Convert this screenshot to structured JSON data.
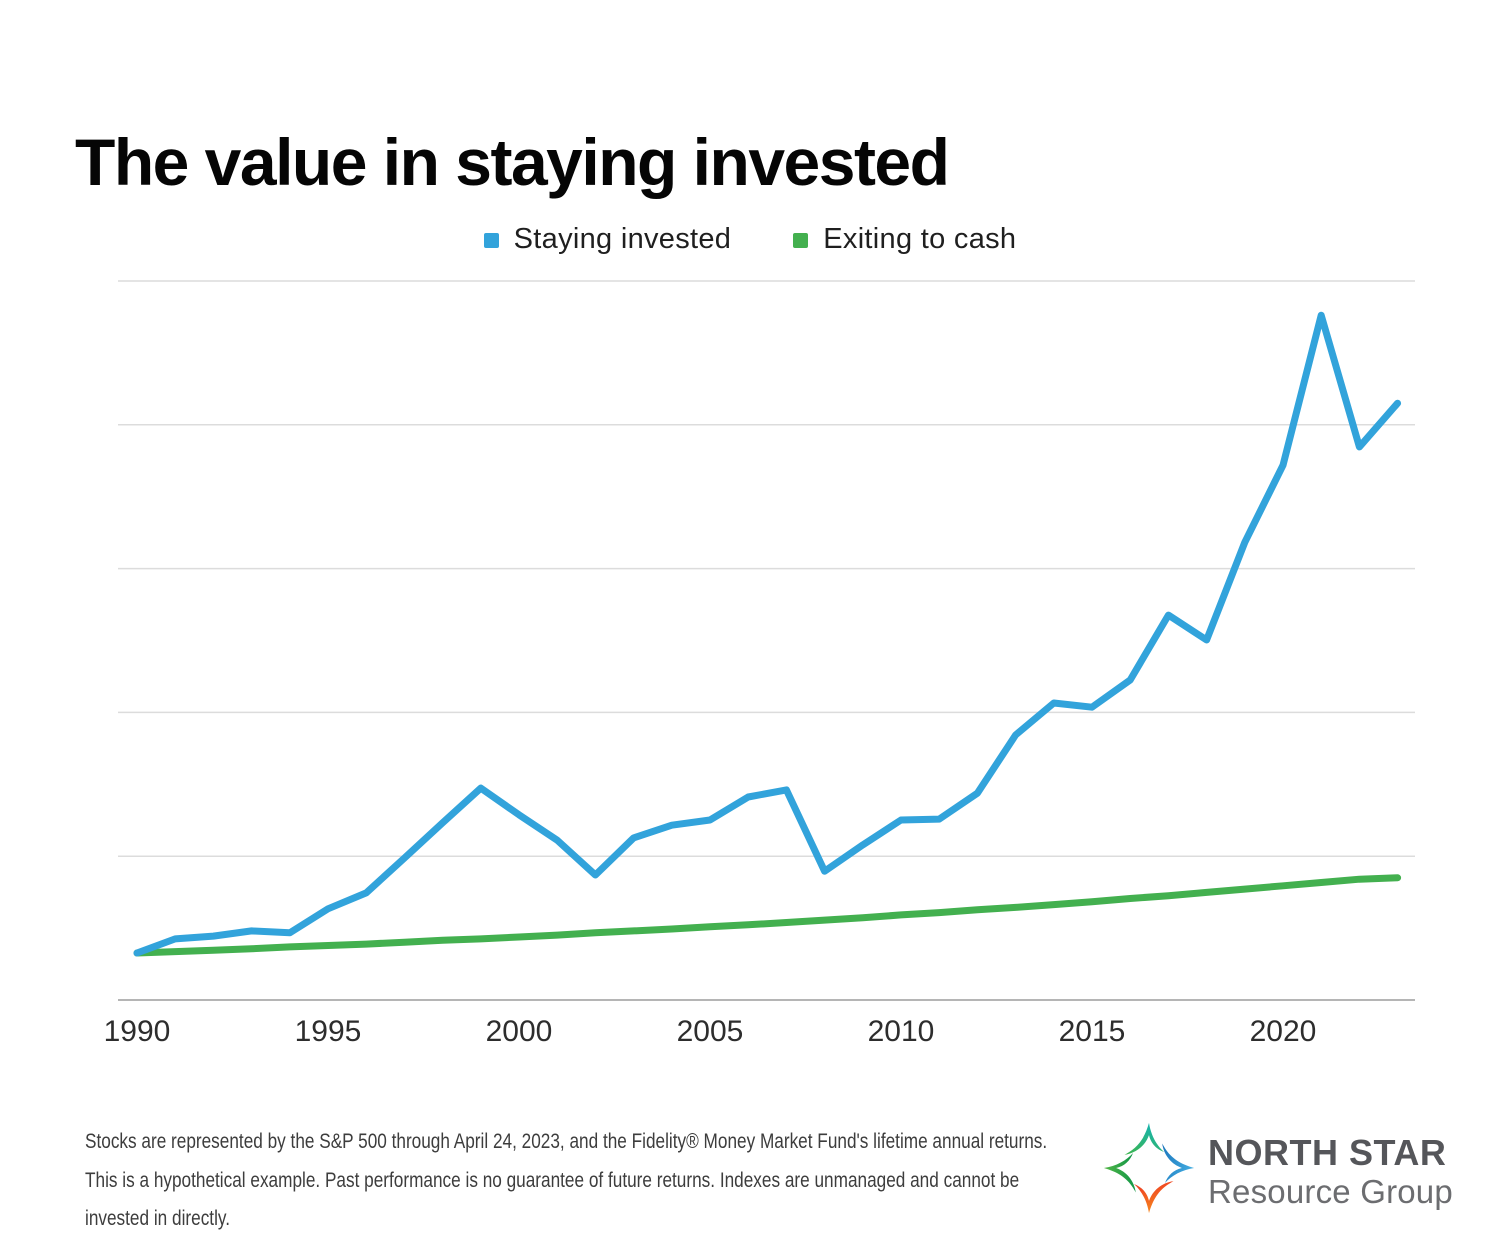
{
  "page": {
    "title": "The value in staying invested",
    "background_color": "#ffffff"
  },
  "chart_data": {
    "type": "line",
    "title": "The value in staying invested",
    "xlabel": "",
    "ylabel": "",
    "x": [
      1990,
      1991,
      1992,
      1993,
      1994,
      1995,
      1996,
      1997,
      1998,
      1999,
      2000,
      2001,
      2002,
      2003,
      2004,
      2005,
      2006,
      2007,
      2008,
      2009,
      2010,
      2011,
      2012,
      2013,
      2014,
      2015,
      2016,
      2017,
      2018,
      2019,
      2020,
      2021,
      2022,
      2023
    ],
    "x_tick_labels": [
      "1990",
      "1995",
      "2000",
      "2005",
      "2010",
      "2015",
      "2020"
    ],
    "series": [
      {
        "name": "Staying invested",
        "color": "#32a3db",
        "values": [
          1.0,
          1.3,
          1.36,
          1.47,
          1.43,
          1.94,
          2.28,
          3.02,
          3.77,
          4.51,
          3.94,
          3.4,
          2.66,
          3.45,
          3.72,
          3.83,
          4.32,
          4.47,
          2.74,
          3.3,
          3.83,
          3.85,
          4.4,
          5.64,
          6.32,
          6.23,
          6.81,
          8.19,
          7.66,
          9.74,
          11.38,
          14.57,
          11.77,
          12.7
        ]
      },
      {
        "name": "Exiting to cash",
        "color": "#43b04f",
        "values": [
          1.0,
          1.03,
          1.06,
          1.09,
          1.13,
          1.16,
          1.19,
          1.23,
          1.27,
          1.3,
          1.34,
          1.38,
          1.43,
          1.47,
          1.51,
          1.56,
          1.6,
          1.65,
          1.7,
          1.75,
          1.81,
          1.86,
          1.92,
          1.97,
          2.03,
          2.09,
          2.16,
          2.22,
          2.29,
          2.36,
          2.43,
          2.5,
          2.57,
          2.6
        ]
      }
    ],
    "ylim": [
      0,
      15.3
    ],
    "y_gridline_values": [
      0,
      3.06,
      6.12,
      9.18,
      12.24,
      15.3
    ],
    "y_tick_labels_visible": false,
    "grid": "horizontal",
    "legend_position": "top-center"
  },
  "footer": {
    "lines": [
      "Stocks are represented by the S&P 500 through April 24, 2023, and the Fidelity® Money Market Fund's lifetime annual returns.",
      "This is a hypothetical example. Past performance is no guarantee of future returns. Indexes are unmanaged and cannot be",
      "invested in directly."
    ]
  },
  "logo": {
    "line1": "NORTH STAR",
    "line2": "Resource Group",
    "arm_colors": {
      "top": [
        "#3db54a",
        "#17b3ae"
      ],
      "right": [
        "#1b75bc",
        "#41aadf"
      ],
      "bottom": [
        "#f7941d",
        "#ef4323"
      ],
      "left": [
        "#0e9447",
        "#58b947"
      ]
    }
  }
}
